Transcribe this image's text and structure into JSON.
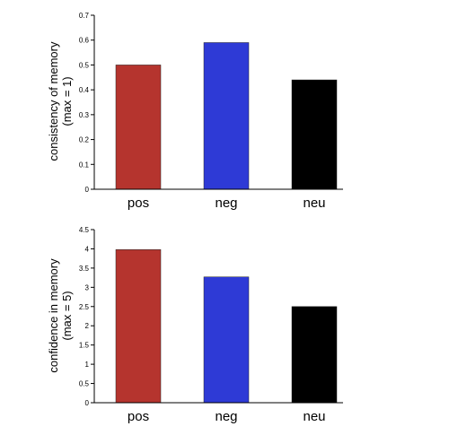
{
  "chart_data": [
    {
      "type": "bar",
      "categories": [
        "pos",
        "neg",
        "neu"
      ],
      "values": [
        0.5,
        0.59,
        0.44
      ],
      "colors": [
        "#b5342e",
        "#2e3ad6",
        "#000000"
      ],
      "ylabel_line1": "consistency of memory",
      "ylabel_line2": "(max = 1)",
      "ylim": [
        0,
        0.7
      ],
      "yticks": [
        "0",
        "0.1",
        "0.2",
        "0.3",
        "0.4",
        "0.5",
        "0.6",
        "0.7"
      ],
      "grid": false
    },
    {
      "type": "bar",
      "categories": [
        "pos",
        "neg",
        "neu"
      ],
      "values": [
        3.98,
        3.27,
        2.5
      ],
      "colors": [
        "#b5342e",
        "#2e3ad6",
        "#000000"
      ],
      "ylabel_line1": "confidence in memory",
      "ylabel_line2": "(max = 5)",
      "ylim": [
        0,
        4.5
      ],
      "yticks": [
        "0",
        "0.5",
        "1",
        "1.5",
        "2",
        "2.5",
        "3",
        "3.5",
        "4",
        "4.5"
      ],
      "grid": false
    }
  ]
}
